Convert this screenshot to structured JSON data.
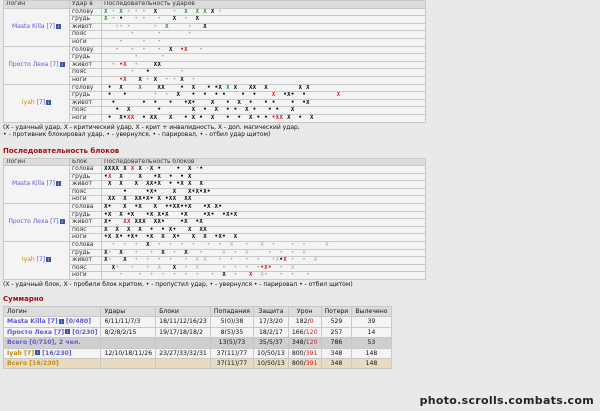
{
  "hits": {
    "headers": {
      "login": "Логин",
      "zone": "Удар в",
      "seq": "Последовательность ударов"
    },
    "zones": [
      "голову",
      "грудь",
      "живот",
      "пояс",
      "ноги"
    ],
    "players": [
      {
        "name": "Masta Killa",
        "level": "[7]",
        "cls": "blue",
        "rows": [
          [
            [
              "g",
              "X"
            ],
            [
              "d",
              " • "
            ],
            [
              "g",
              "X"
            ],
            [
              "d",
              " • • •  "
            ],
            [
              "k",
              "X"
            ],
            [
              "d",
              "    •  "
            ],
            [
              "g",
              "X"
            ],
            [
              "d",
              "  "
            ],
            [
              "g",
              "X"
            ],
            [
              "d",
              " "
            ],
            [
              "g",
              "X"
            ],
            [
              "d",
              " "
            ],
            [
              "k",
              "X"
            ],
            [
              "d",
              " •"
            ]
          ],
          [
            [
              "g",
              "X"
            ],
            [
              "d",
              " •"
            ],
            [
              "k",
              " •"
            ],
            [
              "d",
              "   • •   •   "
            ],
            [
              "k",
              "X"
            ],
            [
              "d",
              "  •  "
            ],
            [
              "k",
              "X"
            ]
          ],
          [
            [
              "d",
              "   •• •      •  "
            ],
            [
              "g",
              "X"
            ],
            [
              "d",
              "     •   "
            ],
            [
              "k",
              "X"
            ]
          ],
          [
            [
              "d",
              "       •      •       •"
            ]
          ],
          [
            [
              "d",
              "    •     •   • "
            ]
          ]
        ]
      },
      {
        "name": "Просто Леха",
        "level": "[7]",
        "cls": "blue",
        "rows": [
          [
            [
              "d",
              "   •   •  •   •  "
            ],
            [
              "k",
              "X"
            ],
            [
              "d",
              "  "
            ],
            [
              "r",
              "•X"
            ],
            [
              "d",
              "   •"
            ]
          ],
          [
            [
              "d",
              "        •      •"
            ]
          ],
          [
            [
              "d",
              "  • "
            ],
            [
              "r",
              "•X"
            ],
            [
              "d",
              "  •    "
            ],
            [
              "k",
              "XX"
            ]
          ],
          [
            [
              "d",
              "       •   "
            ],
            [
              "k",
              "•"
            ],
            [
              "d",
              "        •"
            ]
          ],
          [
            [
              "d",
              "    "
            ],
            [
              "r",
              "•X"
            ],
            [
              "d",
              "   "
            ],
            [
              "k",
              "X"
            ],
            [
              "d",
              " • "
            ],
            [
              "k",
              "X"
            ],
            [
              "d",
              "  • • "
            ],
            [
              "k",
              "X"
            ],
            [
              "d",
              "  •"
            ]
          ]
        ]
      },
      {
        "name": "Iyah",
        "level": "[7]",
        "cls": "gold",
        "rows": [
          [
            [
              "k",
              " •  "
            ],
            [
              "k",
              "X"
            ],
            [
              "d",
              "    "
            ],
            [
              "g",
              "X"
            ],
            [
              "d",
              "    "
            ],
            [
              "k",
              "XX"
            ],
            [
              "d",
              "    "
            ],
            [
              "k",
              "•  X"
            ],
            [
              "d",
              "   "
            ],
            [
              "k",
              "• •X "
            ],
            [
              "g",
              "X"
            ],
            [
              "d",
              " "
            ],
            [
              "k",
              "X"
            ],
            [
              "d",
              "   "
            ],
            [
              "k",
              "XX  X"
            ],
            [
              "d",
              "        "
            ],
            [
              "k",
              "X X"
            ]
          ],
          [
            [
              "k",
              " •   • "
            ],
            [
              "d",
              "      •  •  "
            ],
            [
              "k",
              "X   •  •"
            ],
            [
              "d",
              "  "
            ],
            [
              "k",
              "• •    •  •    "
            ],
            [
              "r",
              "X"
            ],
            [
              "d",
              "  "
            ],
            [
              "k",
              "•X•  •"
            ],
            [
              "d",
              "        "
            ],
            [
              "r",
              "X"
            ]
          ],
          [
            [
              "d",
              "  "
            ],
            [
              "k",
              "•       •  •   •   •X•"
            ],
            [
              "d",
              "    "
            ],
            [
              "k",
              "X   •  X  •   • •"
            ],
            [
              "d",
              "    "
            ],
            [
              "k",
              "•  •X"
            ]
          ],
          [
            [
              "d",
              "   "
            ],
            [
              "k",
              "•  X"
            ],
            [
              "d",
              "       "
            ],
            [
              "k",
              "•        X  •  X  • •  X •"
            ],
            [
              "d",
              "   "
            ],
            [
              "k",
              "• •   X"
            ]
          ],
          [
            [
              "k",
              " •  "
            ],
            [
              "k",
              "X•"
            ],
            [
              "r",
              "XX"
            ],
            [
              "d",
              "  "
            ],
            [
              "k",
              "•"
            ],
            [
              "d",
              " "
            ],
            [
              "k",
              "XX"
            ],
            [
              "d",
              "   "
            ],
            [
              "k",
              "X   • X •  X   •  •  X •"
            ],
            [
              "d",
              " "
            ],
            [
              "k",
              "• "
            ],
            [
              "r",
              "•XX"
            ],
            [
              "k",
              " X  •  X"
            ]
          ]
        ]
      }
    ],
    "legend_1": "(X - удачный удар, X - критический удар, X - крит + инвалидность, X - доп. магический удар,",
    "legend_2": "• - противник блокировал удар, • - увернулся, • - парировал, • - отбил удар щитом)"
  },
  "blocks": {
    "title": "Последовательность блоков",
    "headers": {
      "login": "Логин",
      "zone": "Блок",
      "seq": "Последовательность блоков"
    },
    "zones": [
      "голова",
      "грудь",
      "живот",
      "пояс",
      "ноги"
    ],
    "players": [
      {
        "name": "Masta Killa",
        "level": "[7]",
        "cls": "blue",
        "rows": [
          [
            [
              "k",
              "XXXX"
            ],
            [
              "d",
              " "
            ],
            [
              "k",
              "X"
            ],
            [
              "d",
              " "
            ],
            [
              "r",
              "X"
            ],
            [
              "d",
              " "
            ],
            [
              "k",
              "X"
            ],
            [
              "d",
              " •"
            ],
            [
              "k",
              "X"
            ],
            [
              "d",
              " "
            ],
            [
              "k",
              "•"
            ],
            [
              "d",
              "    "
            ],
            [
              "k",
              "•"
            ],
            [
              "d",
              "  "
            ],
            [
              "k",
              "X"
            ],
            [
              "d",
              " •"
            ],
            [
              "k",
              "•"
            ]
          ],
          [
            [
              "k",
              "•"
            ],
            [
              "r",
              "X"
            ],
            [
              "d",
              "  "
            ],
            [
              "k",
              "X"
            ],
            [
              "d",
              "    "
            ],
            [
              "k",
              "X"
            ],
            [
              "d",
              "   "
            ],
            [
              "k",
              "•X"
            ],
            [
              "d",
              "  "
            ],
            [
              "k",
              "•"
            ],
            [
              "d",
              "  "
            ],
            [
              "k",
              "• X"
            ]
          ],
          [
            [
              "d",
              " "
            ],
            [
              "k",
              "X  X   X"
            ],
            [
              "d",
              "  "
            ],
            [
              "k",
              "XX•X  • •X X"
            ],
            [
              "d",
              "  "
            ],
            [
              "k",
              "X"
            ]
          ],
          [
            [
              "d",
              "     "
            ],
            [
              "k",
              "•     •X•    X"
            ],
            [
              "d",
              "   "
            ],
            [
              "k",
              "X•X•X•"
            ]
          ],
          [
            [
              "d",
              " "
            ],
            [
              "k",
              "XX"
            ],
            [
              "d",
              "  "
            ],
            [
              "k",
              "X"
            ],
            [
              "d",
              "  "
            ],
            [
              "k",
              "XX•X•"
            ],
            [
              "d",
              " "
            ],
            [
              "k",
              "X"
            ],
            [
              "d",
              " "
            ],
            [
              "k",
              "•XX"
            ],
            [
              "d",
              "  "
            ],
            [
              "k",
              "XX"
            ]
          ]
        ]
      },
      {
        "name": "Просто Леха",
        "level": "[7]",
        "cls": "blue",
        "rows": [
          [
            [
              "k",
              "X•   X  •X   X  ••XX••X   •X X•"
            ]
          ],
          [
            [
              "k",
              "•X  X •X   •X X•X   •X    •X•  •X•X"
            ]
          ],
          [
            [
              "k",
              "X•   "
            ],
            [
              "r",
              "XX"
            ],
            [
              "d",
              " "
            ],
            [
              "k",
              "XXX"
            ],
            [
              "d",
              "  "
            ],
            [
              "k",
              "XX•    •X"
            ],
            [
              "d",
              "  "
            ],
            [
              "k",
              "•X"
            ]
          ],
          [
            [
              "k",
              "X  X  X  X  •  • X•   X"
            ],
            [
              "d",
              "  "
            ],
            [
              "k",
              "XX"
            ]
          ],
          [
            [
              "k",
              "•X X• •X•  •X  X  X•   X  X  •X•  X"
            ]
          ]
        ]
      },
      {
        "name": "Iyah",
        "level": "[7]",
        "cls": "gold",
        "rows": [
          [
            [
              "d",
              "  •  •  •  "
            ],
            [
              "k",
              "X"
            ],
            [
              "d",
              "  •  •  •  •   •  •  X   •   X  •    •  •     X"
            ]
          ],
          [
            [
              "k",
              "X"
            ],
            [
              "d",
              "•  "
            ],
            [
              "k",
              "X"
            ],
            [
              "d",
              "   •   •  "
            ],
            [
              "k",
              "X"
            ],
            [
              "d",
              "  •  "
            ],
            [
              "k",
              "X"
            ],
            [
              "d",
              "   •     X  •  X     •  •  •  X"
            ]
          ],
          [
            [
              "k",
              "X"
            ],
            [
              "d",
              "•   "
            ],
            [
              "k",
              "X"
            ],
            [
              "d",
              "  •  •  •  •   •  X X   •  •   •  •   •X"
            ],
            [
              "k",
              "•"
            ],
            [
              "r",
              "X"
            ],
            [
              "d",
              " •  •  X"
            ]
          ],
          [
            [
              "d",
              "  "
            ],
            [
              "k",
              "X"
            ],
            [
              "d",
              "•   •   •  X   "
            ],
            [
              "k",
              "X"
            ],
            [
              "d",
              "  •  X      •  •  •  •"
            ],
            [
              "r",
              "•X•"
            ],
            [
              "d",
              "  •  X"
            ]
          ],
          [
            [
              "d",
              "    •    •  •  •  •  •  •   •  "
            ],
            [
              "k",
              "X"
            ],
            [
              "d",
              "  •   "
            ],
            [
              "r",
              "X"
            ],
            [
              "d",
              "  X•   •  •   •"
            ]
          ]
        ]
      }
    ],
    "legend": "(X - удачный блок, X - пробили блок критом, • - пропустил удар, • - увернулся • - парировал • - отбил щитом)"
  },
  "summary": {
    "title": "Суммарно",
    "headers": [
      "Логин",
      "Удары",
      "Блоки",
      "Попадания",
      "Защита",
      "Урон",
      "Потери",
      "Вылечено"
    ],
    "rows": [
      {
        "login": "Masta Killa [7]",
        "level_note": "[0/480]",
        "hits": "6/11/11/7/3",
        "blocks": "18/11/12/16/23",
        "pop": "5(0)/38",
        "def": "17/3/20",
        "dmg": "182/0",
        "loss": "529",
        "heal": "39",
        "style": "blue",
        "bg": ""
      },
      {
        "login": "Просто Леха [7]",
        "level_note": "[0/230]",
        "hits": "8/2/8/2/15",
        "blocks": "19/17/18/18/2",
        "pop": "8(5)/35",
        "def": "18/2/17",
        "dmg": "166/120",
        "loss": "257",
        "heal": "14",
        "style": "blue",
        "bg": ""
      },
      {
        "login": "Всего [0/710], 2 чел.",
        "level_note": "",
        "hits": "",
        "blocks": "",
        "pop": "13(5)/73",
        "def": "35/5/37",
        "dmg": "348/120",
        "loss": "786",
        "heal": "53",
        "style": "blue",
        "bg": "tot"
      },
      {
        "login": "Iyah [7]",
        "level_note": "[16/230]",
        "hits": "12/10/18/11/26",
        "blocks": "23/27/33/32/31",
        "pop": "37(11)/77",
        "def": "10/50/13",
        "dmg": "800/391",
        "loss": "348",
        "heal": "148",
        "style": "gold",
        "bg": ""
      },
      {
        "login": "Всего [16/230]",
        "level_note": "",
        "hits": "",
        "blocks": "",
        "pop": "37(11)/77",
        "def": "10/50/13",
        "dmg": "800/391",
        "loss": "348",
        "heal": "148",
        "style": "gold",
        "bg": "gold"
      }
    ]
  },
  "watermark": "photo.scrolls.combats.com"
}
